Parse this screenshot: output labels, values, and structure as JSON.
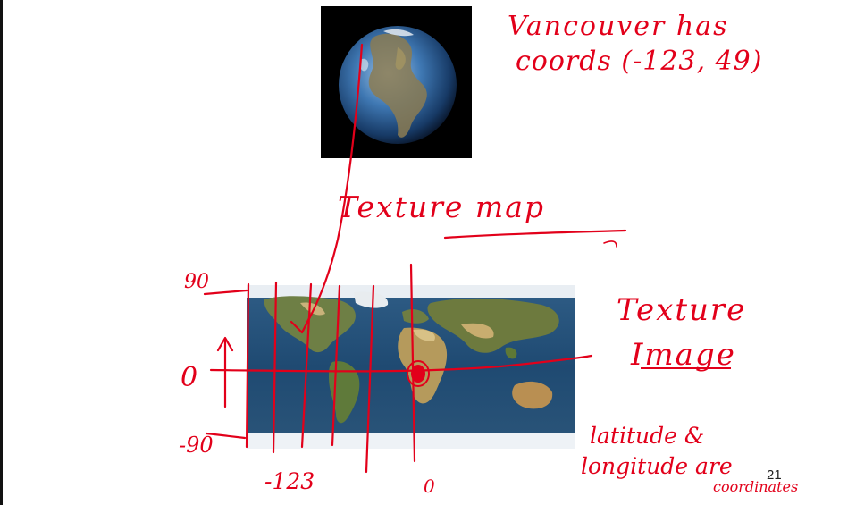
{
  "slide": {
    "annotation": {
      "line1": "Vancouver has",
      "line2": "coords (-123, 49)"
    },
    "texture_map_label": "Texture map",
    "texture_image_label": {
      "line1": "Texture",
      "line2": "Image"
    },
    "lat_long_note": {
      "line1": "latitude &",
      "line2": "longitude are",
      "line3": "coordinates"
    },
    "axis_ticks": {
      "lat_90": "90",
      "lat_0": "0",
      "lat_minus_90": "-90",
      "long_minus_123": "-123",
      "long_0": "0"
    },
    "slide_number": "21",
    "ink_color": "#e2001a"
  }
}
